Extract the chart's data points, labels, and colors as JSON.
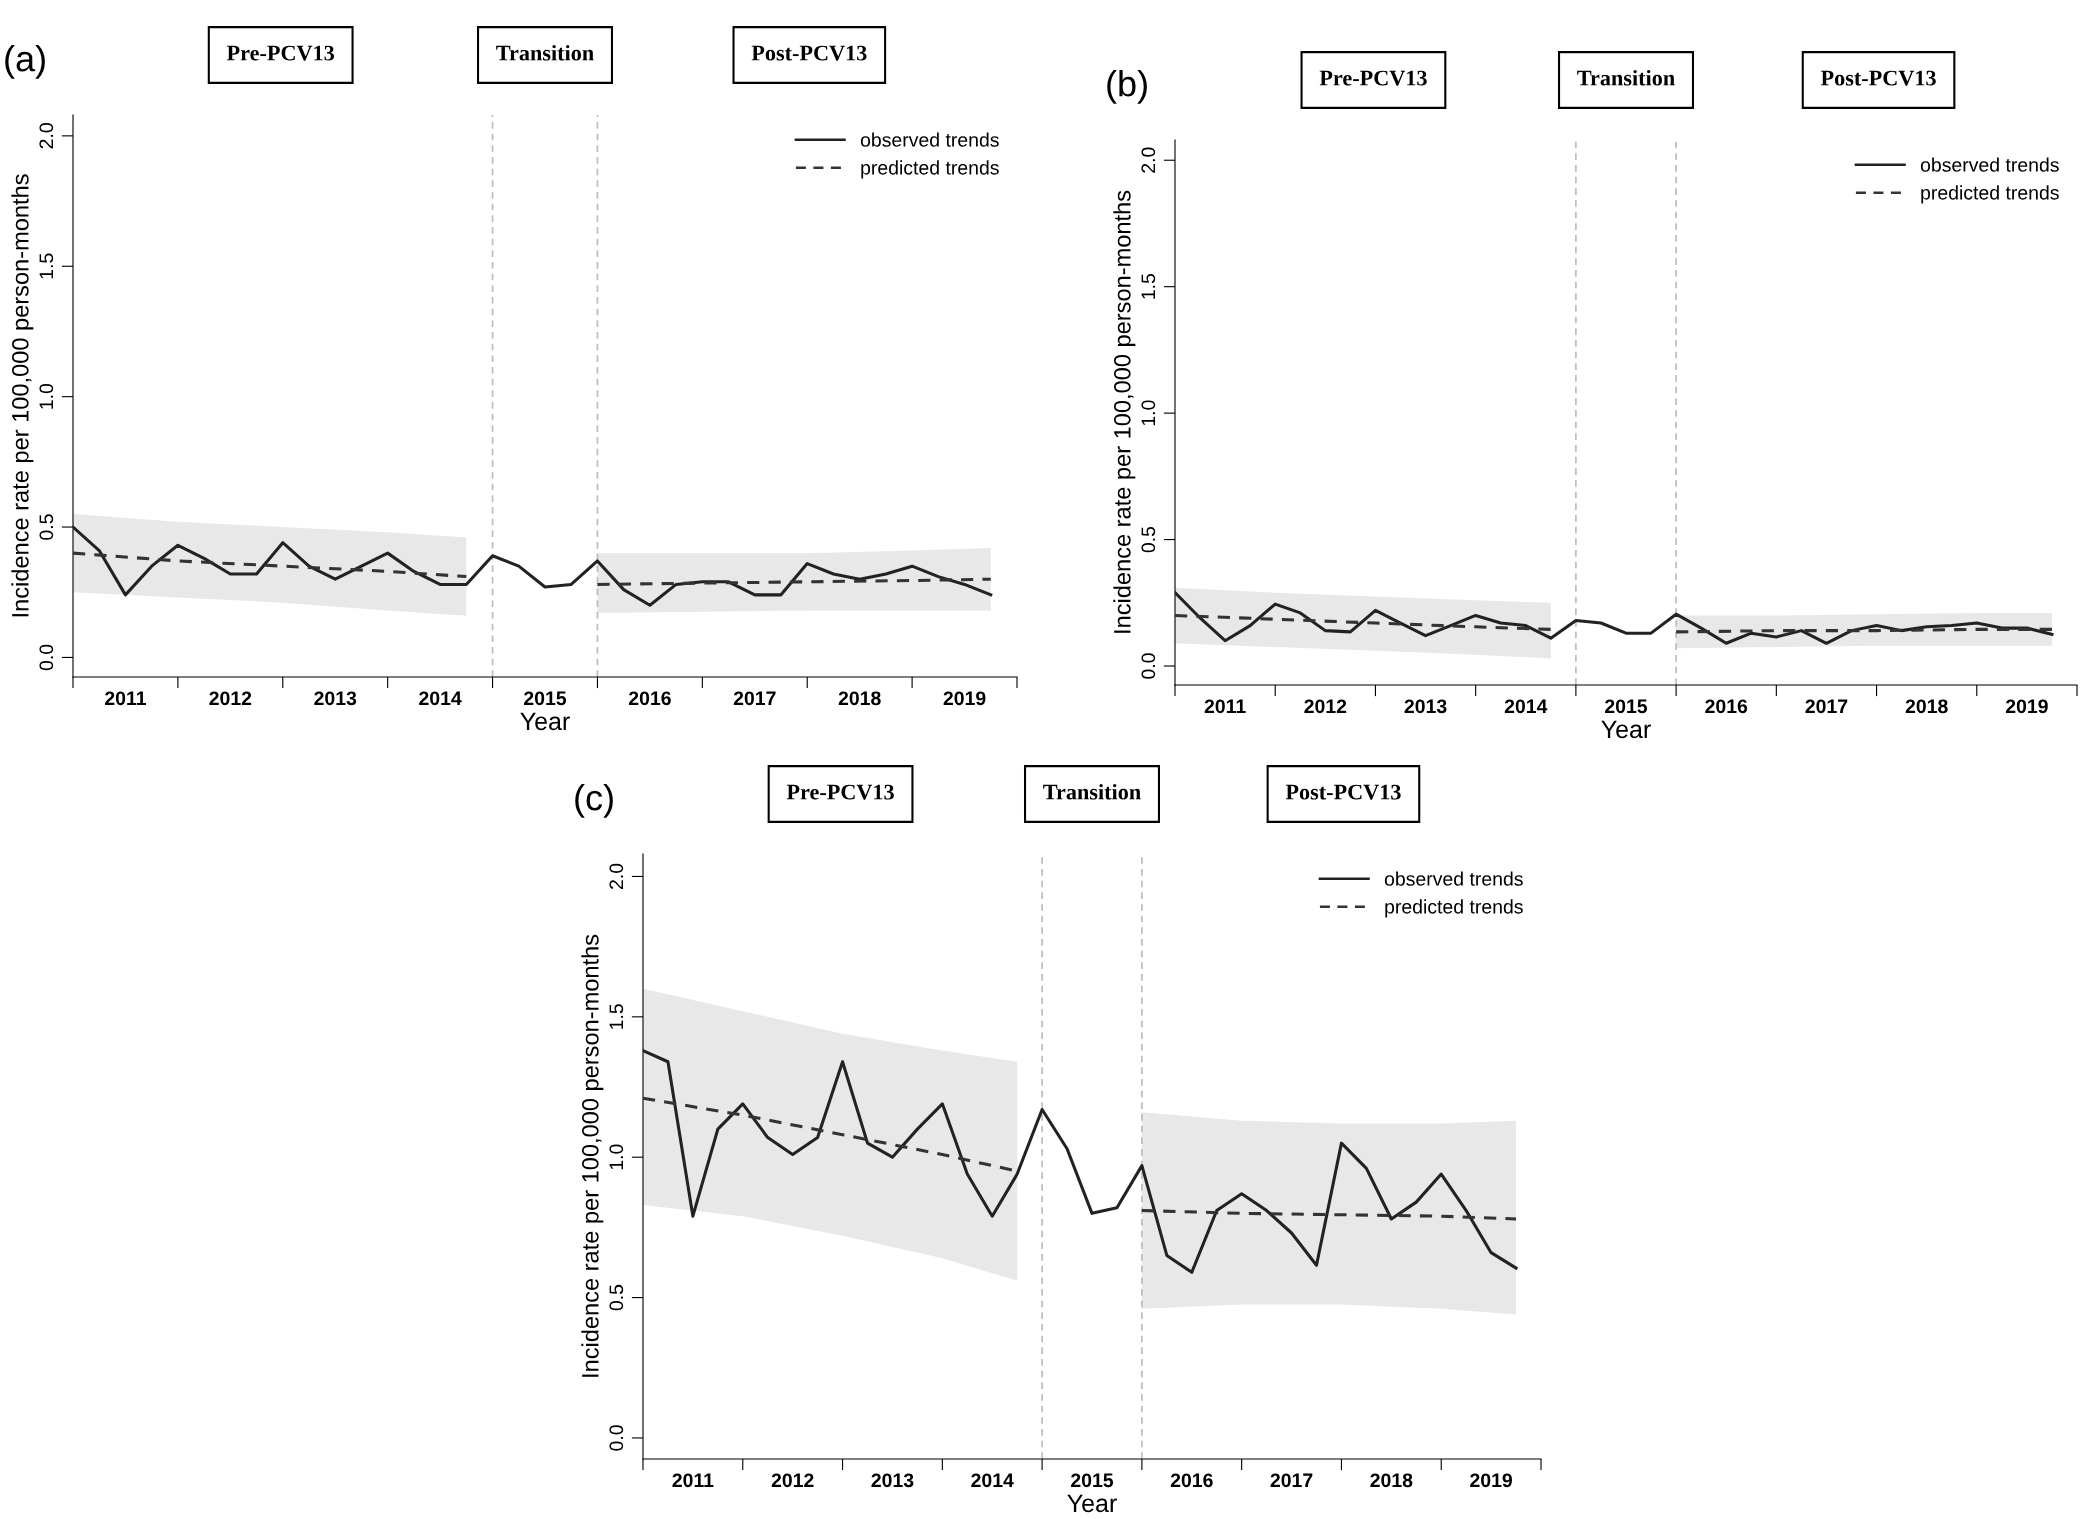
{
  "chart_data": [
    {
      "type": "line",
      "title": "(a)",
      "xlabel": "Year",
      "ylabel": "Incidence rate per 100,000 person-months",
      "annotations": [
        "Pre-PCV13",
        "Transition",
        "Post-PCV13"
      ],
      "x": [
        2011,
        2011.25,
        2011.5,
        2011.75,
        2012,
        2012.25,
        2012.5,
        2012.75,
        2013,
        2013.25,
        2013.5,
        2013.75,
        2014,
        2014.25,
        2014.5,
        2014.75,
        2015,
        2015.25,
        2015.5,
        2015.75,
        2016,
        2016.25,
        2016.5,
        2016.75,
        2017,
        2017.25,
        2017.5,
        2017.75,
        2018,
        2018.25,
        2018.5,
        2018.75,
        2019,
        2019.25,
        2019.5,
        2019.75
      ],
      "series": [
        {
          "name": "observed trends",
          "color": "#222222",
          "line_style": "solid",
          "values": [
            0.5,
            0.41,
            0.24,
            0.35,
            0.43,
            0.38,
            0.32,
            0.32,
            0.44,
            0.35,
            0.3,
            0.35,
            0.4,
            0.33,
            0.28,
            0.28,
            0.39,
            0.35,
            0.27,
            0.28,
            0.37,
            0.26,
            0.2,
            0.28,
            0.29,
            0.29,
            0.24,
            0.24,
            0.36,
            0.32,
            0.3,
            0.32,
            0.35,
            0.31,
            0.28,
            0.24
          ]
        },
        {
          "name": "predicted trends",
          "color": "#333333",
          "line_style": "dashed",
          "x": [
            2011,
            2012,
            2013,
            2014,
            2014.75
          ],
          "values": [
            0.4,
            0.37,
            0.35,
            0.33,
            0.31
          ],
          "lower": [
            0.25,
            0.23,
            0.21,
            0.18,
            0.16
          ],
          "upper": [
            0.55,
            0.52,
            0.5,
            0.48,
            0.46
          ]
        },
        {
          "color": "#333333",
          "line_style": "dashed",
          "x": [
            2016,
            2017,
            2018,
            2019,
            2019.75
          ],
          "values": [
            0.28,
            0.285,
            0.29,
            0.295,
            0.3
          ],
          "lower": [
            0.17,
            0.175,
            0.18,
            0.18,
            0.18
          ],
          "upper": [
            0.4,
            0.4,
            0.4,
            0.41,
            0.42
          ]
        }
      ],
      "xlim": [
        2011,
        2020
      ],
      "xticks": [
        {
          "value": 2011,
          "label": null
        },
        {
          "value": 2011.5,
          "label": "2011"
        },
        {
          "value": 2012,
          "label": null
        },
        {
          "value": 2012.5,
          "label": "2012"
        },
        {
          "value": 2013,
          "label": null
        },
        {
          "value": 2013.5,
          "label": "2013"
        },
        {
          "value": 2014,
          "label": null
        },
        {
          "value": 2014.5,
          "label": "2014"
        },
        {
          "value": 2015,
          "label": null
        },
        {
          "value": 2015.5,
          "label": "2015"
        },
        {
          "value": 2016,
          "label": null
        },
        {
          "value": 2016.5,
          "label": "2016"
        },
        {
          "value": 2017,
          "label": null
        },
        {
          "value": 2017.5,
          "label": "2017"
        },
        {
          "value": 2018,
          "label": null
        },
        {
          "value": 2018.5,
          "label": "2018"
        },
        {
          "value": 2019,
          "label": null
        },
        {
          "value": 2019.5,
          "label": "2019"
        },
        {
          "value": 2020,
          "label": null
        }
      ],
      "ylim": [
        -0.075,
        2.08
      ],
      "yticks": [
        {
          "value": 0,
          "label": "0.0"
        },
        {
          "value": 0.5,
          "label": "0.5"
        },
        {
          "value": 1,
          "label": "1.0"
        },
        {
          "value": 1.5,
          "label": "1.5"
        },
        {
          "value": 2,
          "label": "2.0"
        }
      ],
      "ref_lines": [
        {
          "axis": "x",
          "value": 2015,
          "color": "#bbbbbb",
          "line_style": "dashed"
        },
        {
          "axis": "x",
          "value": 2016,
          "color": "#bbbbbb",
          "line_style": "dashed"
        }
      ],
      "legend": "top right",
      "grid": false
    },
    {
      "type": "line",
      "title": "(b)",
      "xlabel": "Year",
      "ylabel": "Incidence rate per 100,000 person-months",
      "annotations": [
        "Pre-PCV13",
        "Transition",
        "Post-PCV13"
      ],
      "x": [
        2011,
        2011.25,
        2011.5,
        2011.75,
        2012,
        2012.25,
        2012.5,
        2012.75,
        2013,
        2013.25,
        2013.5,
        2013.75,
        2014,
        2014.25,
        2014.5,
        2014.75,
        2015,
        2015.25,
        2015.5,
        2015.75,
        2016,
        2016.25,
        2016.5,
        2016.75,
        2017,
        2017.25,
        2017.5,
        2017.75,
        2018,
        2018.25,
        2018.5,
        2018.75,
        2019,
        2019.25,
        2019.5,
        2019.75
      ],
      "series": [
        {
          "name": "observed trends",
          "color": "#222222",
          "line_style": "solid",
          "values": [
            0.29,
            0.19,
            0.1,
            0.16,
            0.245,
            0.21,
            0.14,
            0.135,
            0.22,
            0.17,
            0.12,
            0.16,
            0.2,
            0.17,
            0.16,
            0.11,
            0.18,
            0.17,
            0.13,
            0.13,
            0.205,
            0.15,
            0.09,
            0.13,
            0.115,
            0.14,
            0.09,
            0.14,
            0.16,
            0.14,
            0.155,
            0.16,
            0.17,
            0.15,
            0.15,
            0.125
          ]
        },
        {
          "name": "predicted trends",
          "color": "#333333",
          "line_style": "dashed",
          "x": [
            2011,
            2012,
            2013,
            2014,
            2014.75
          ],
          "values": [
            0.2,
            0.185,
            0.17,
            0.155,
            0.145
          ],
          "lower": [
            0.09,
            0.075,
            0.06,
            0.045,
            0.03
          ],
          "upper": [
            0.31,
            0.29,
            0.275,
            0.26,
            0.25
          ]
        },
        {
          "color": "#333333",
          "line_style": "dashed",
          "x": [
            2016,
            2017,
            2018,
            2019,
            2019.75
          ],
          "values": [
            0.135,
            0.14,
            0.14,
            0.145,
            0.145
          ],
          "lower": [
            0.07,
            0.075,
            0.08,
            0.08,
            0.08
          ],
          "upper": [
            0.2,
            0.2,
            0.205,
            0.21,
            0.21
          ]
        }
      ],
      "xlim": [
        2011,
        2020
      ],
      "xticks": [
        {
          "value": 2011,
          "label": null
        },
        {
          "value": 2011.5,
          "label": "2011"
        },
        {
          "value": 2012,
          "label": null
        },
        {
          "value": 2012.5,
          "label": "2012"
        },
        {
          "value": 2013,
          "label": null
        },
        {
          "value": 2013.5,
          "label": "2013"
        },
        {
          "value": 2014,
          "label": null
        },
        {
          "value": 2014.5,
          "label": "2014"
        },
        {
          "value": 2015,
          "label": null
        },
        {
          "value": 2015.5,
          "label": "2015"
        },
        {
          "value": 2016,
          "label": null
        },
        {
          "value": 2016.5,
          "label": "2016"
        },
        {
          "value": 2017,
          "label": null
        },
        {
          "value": 2017.5,
          "label": "2017"
        },
        {
          "value": 2018,
          "label": null
        },
        {
          "value": 2018.5,
          "label": "2018"
        },
        {
          "value": 2019,
          "label": null
        },
        {
          "value": 2019.5,
          "label": "2019"
        },
        {
          "value": 2020,
          "label": null
        }
      ],
      "ylim": [
        -0.075,
        2.08
      ],
      "yticks": [
        {
          "value": 0,
          "label": "0.0"
        },
        {
          "value": 0.5,
          "label": "0.5"
        },
        {
          "value": 1,
          "label": "1.0"
        },
        {
          "value": 1.5,
          "label": "1.5"
        },
        {
          "value": 2,
          "label": "2.0"
        }
      ],
      "ref_lines": [
        {
          "axis": "x",
          "value": 2015,
          "color": "#bbbbbb",
          "line_style": "dashed"
        },
        {
          "axis": "x",
          "value": 2016,
          "color": "#bbbbbb",
          "line_style": "dashed"
        }
      ],
      "legend": "top right",
      "grid": false
    },
    {
      "type": "line",
      "title": "(c)",
      "xlabel": "Year",
      "ylabel": "Incidence rate per 100,000 person-months",
      "annotations": [
        "Pre-PCV13",
        "Transition",
        "Post-PCV13"
      ],
      "x": [
        2011,
        2011.25,
        2011.5,
        2011.75,
        2012,
        2012.25,
        2012.5,
        2012.75,
        2013,
        2013.25,
        2013.5,
        2013.75,
        2014,
        2014.25,
        2014.5,
        2014.75,
        2015,
        2015.25,
        2015.5,
        2015.75,
        2016,
        2016.25,
        2016.5,
        2016.75,
        2017,
        2017.25,
        2017.5,
        2017.75,
        2018,
        2018.25,
        2018.5,
        2018.75,
        2019,
        2019.25,
        2019.5,
        2019.75
      ],
      "series": [
        {
          "name": "observed trends",
          "color": "#222222",
          "line_style": "solid",
          "values": [
            1.38,
            1.34,
            0.79,
            1.1,
            1.19,
            1.07,
            1.01,
            1.07,
            1.34,
            1.05,
            1.0,
            1.1,
            1.19,
            0.94,
            0.79,
            0.94,
            1.17,
            1.03,
            0.8,
            0.82,
            0.97,
            0.65,
            0.59,
            0.81,
            0.87,
            0.81,
            0.73,
            0.615,
            1.05,
            0.96,
            0.78,
            0.84,
            0.94,
            0.81,
            0.66,
            0.605
          ]
        },
        {
          "name": "predicted trends",
          "color": "#333333",
          "line_style": "dashed",
          "x": [
            2011,
            2012,
            2013,
            2014,
            2014.75
          ],
          "values": [
            1.21,
            1.15,
            1.08,
            1.01,
            0.95
          ],
          "lower": [
            0.83,
            0.79,
            0.72,
            0.64,
            0.56
          ],
          "upper": [
            1.6,
            1.52,
            1.44,
            1.38,
            1.34
          ]
        },
        {
          "color": "#333333",
          "line_style": "dashed",
          "x": [
            2016,
            2017,
            2018,
            2019,
            2019.75
          ],
          "values": [
            0.81,
            0.8,
            0.795,
            0.79,
            0.78
          ],
          "lower": [
            0.46,
            0.475,
            0.475,
            0.46,
            0.44
          ],
          "upper": [
            1.16,
            1.13,
            1.12,
            1.12,
            1.13
          ]
        }
      ],
      "xlim": [
        2011,
        2020
      ],
      "xticks": [
        {
          "value": 2011,
          "label": null
        },
        {
          "value": 2011.5,
          "label": "2011"
        },
        {
          "value": 2012,
          "label": null
        },
        {
          "value": 2012.5,
          "label": "2012"
        },
        {
          "value": 2013,
          "label": null
        },
        {
          "value": 2013.5,
          "label": "2013"
        },
        {
          "value": 2014,
          "label": null
        },
        {
          "value": 2014.5,
          "label": "2014"
        },
        {
          "value": 2015,
          "label": null
        },
        {
          "value": 2015.5,
          "label": "2015"
        },
        {
          "value": 2016,
          "label": null
        },
        {
          "value": 2016.5,
          "label": "2016"
        },
        {
          "value": 2017,
          "label": null
        },
        {
          "value": 2017.5,
          "label": "2017"
        },
        {
          "value": 2018,
          "label": null
        },
        {
          "value": 2018.5,
          "label": "2018"
        },
        {
          "value": 2019,
          "label": null
        },
        {
          "value": 2019.5,
          "label": "2019"
        },
        {
          "value": 2020,
          "label": null
        }
      ],
      "ylim": [
        -0.075,
        2.08
      ],
      "yticks": [
        {
          "value": 0,
          "label": "0.0"
        },
        {
          "value": 0.5,
          "label": "0.5"
        },
        {
          "value": 1,
          "label": "1.0"
        },
        {
          "value": 1.5,
          "label": "1.5"
        },
        {
          "value": 2,
          "label": "2.0"
        }
      ],
      "ref_lines": [
        {
          "axis": "x",
          "value": 2015,
          "color": "#bbbbbb",
          "line_style": "dashed"
        },
        {
          "axis": "x",
          "value": 2016,
          "color": "#bbbbbb",
          "line_style": "dashed"
        }
      ],
      "legend": "top right",
      "grid": false
    }
  ]
}
